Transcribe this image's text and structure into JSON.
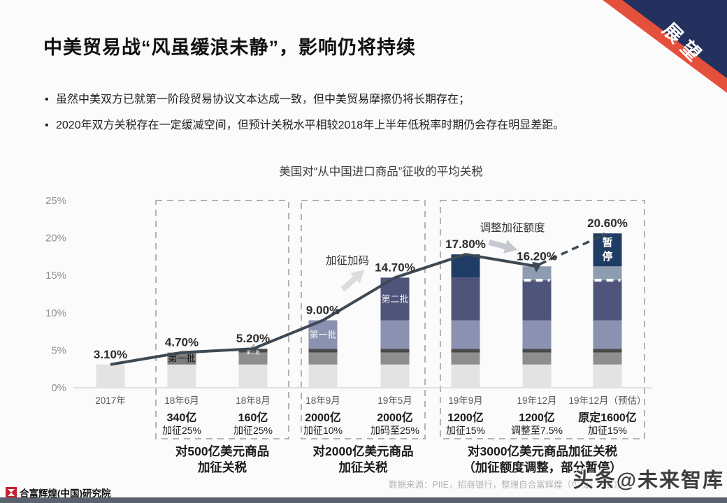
{
  "ribbon": {
    "label": "展望",
    "navy": "#24315f",
    "red": "#e4503c"
  },
  "header": {
    "title": "中美贸易战“风虽缓浪未静”，影响仍将持续",
    "bullets": [
      "虽然中美双方已就第一阶段贸易协议文本达成一致，但中美贸易摩擦仍将长期存在；",
      "2020年双方关税存在一定缓减空间，但预计关税水平相较2018年上半年低税率时期仍会存在明显差距。"
    ]
  },
  "chart_data": {
    "type": "bar",
    "subtype": "stacked-bar-with-line-overlay",
    "title": "美国对“从中国进口商品”征收的平均关税",
    "categories": [
      "2017年",
      "18年6月",
      "18年8月",
      "18年9月",
      "19年5月",
      "19年9月",
      "19年12月",
      "19年12月（预估）"
    ],
    "line_series": {
      "name": "平均关税",
      "values": [
        3.1,
        4.7,
        5.2,
        9.0,
        14.7,
        17.8,
        16.2,
        20.6
      ],
      "dashed_from_index": 6
    },
    "value_labels": [
      "3.10%",
      "4.70%",
      "5.20%",
      "9.00%",
      "14.70%",
      "17.80%",
      "16.20%",
      "20.60%"
    ],
    "ylim": [
      0,
      25
    ],
    "yticks": [
      "0%",
      "5%",
      "10%",
      "15%",
      "20%",
      "25%"
    ],
    "grid": "off",
    "line_color": "#3d4953",
    "bars": [
      {
        "segments": [
          {
            "from": 0,
            "to": 3.1,
            "color": "#e3e3e3"
          }
        ]
      },
      {
        "segments": [
          {
            "from": 0,
            "to": 3.1,
            "color": "#e3e3e3"
          },
          {
            "from": 3.1,
            "to": 4.7,
            "color": "#7d7d7d",
            "label": "第一批",
            "label_color": "#111111",
            "label_size": 13
          }
        ]
      },
      {
        "segments": [
          {
            "from": 0,
            "to": 3.1,
            "color": "#e3e3e3"
          },
          {
            "from": 3.1,
            "to": 4.7,
            "color": "#8e8e8e"
          },
          {
            "from": 4.7,
            "to": 5.2,
            "color": "#4a4a4a",
            "label": "第二批",
            "label_color": "#ffffff",
            "label_size": 6.5
          }
        ]
      },
      {
        "segments": [
          {
            "from": 0,
            "to": 3.1,
            "color": "#e3e3e3"
          },
          {
            "from": 3.1,
            "to": 4.7,
            "color": "#8e8e8e"
          },
          {
            "from": 4.7,
            "to": 5.2,
            "color": "#4a4a4a"
          },
          {
            "from": 5.2,
            "to": 9.0,
            "color": "#8b91b1",
            "label": "第一批",
            "label_color": "#f2f2f2",
            "label_size": 13
          }
        ]
      },
      {
        "segments": [
          {
            "from": 0,
            "to": 3.1,
            "color": "#e3e3e3"
          },
          {
            "from": 3.1,
            "to": 4.7,
            "color": "#8e8e8e"
          },
          {
            "from": 4.7,
            "to": 5.2,
            "color": "#4a4a4a"
          },
          {
            "from": 5.2,
            "to": 9.0,
            "color": "#8b91b1"
          },
          {
            "from": 9.0,
            "to": 14.7,
            "color": "#4f547a",
            "label": "第二批",
            "label_color": "#e9e9f0",
            "label_size": 13
          }
        ]
      },
      {
        "segments": [
          {
            "from": 0,
            "to": 3.1,
            "color": "#e3e3e3"
          },
          {
            "from": 3.1,
            "to": 4.7,
            "color": "#8e8e8e"
          },
          {
            "from": 4.7,
            "to": 5.2,
            "color": "#4a4a4a"
          },
          {
            "from": 5.2,
            "to": 9.0,
            "color": "#8b91b1"
          },
          {
            "from": 9.0,
            "to": 14.7,
            "color": "#4f547a"
          },
          {
            "from": 14.7,
            "to": 17.8,
            "color": "#1e3c64"
          }
        ]
      },
      {
        "break_at": 14.35,
        "segments": [
          {
            "from": 0,
            "to": 3.1,
            "color": "#e3e3e3"
          },
          {
            "from": 3.1,
            "to": 4.7,
            "color": "#8e8e8e"
          },
          {
            "from": 4.7,
            "to": 5.2,
            "color": "#4a4a4a"
          },
          {
            "from": 5.2,
            "to": 9.0,
            "color": "#8b91b1"
          },
          {
            "from": 9.0,
            "to": 14.35,
            "color": "#4f547a"
          },
          {
            "from": 14.35,
            "to": 16.2,
            "color": "#8d9cb1"
          }
        ]
      },
      {
        "break_at": 14.35,
        "segments": [
          {
            "from": 0,
            "to": 3.1,
            "color": "#e3e3e3"
          },
          {
            "from": 3.1,
            "to": 4.7,
            "color": "#8e8e8e"
          },
          {
            "from": 4.7,
            "to": 5.2,
            "color": "#4a4a4a"
          },
          {
            "from": 5.2,
            "to": 9.0,
            "color": "#8b91b1"
          },
          {
            "from": 9.0,
            "to": 14.35,
            "color": "#4f547a"
          },
          {
            "from": 14.35,
            "to": 16.2,
            "color": "#8d9cb1"
          },
          {
            "from": 16.2,
            "to": 20.6,
            "color": "#1e3c64",
            "label": "暂停",
            "label_color": "#ffffff",
            "label_size": 15,
            "vertical": true
          }
        ]
      }
    ],
    "bar_notes": [
      null,
      [
        "340亿",
        "加征25%"
      ],
      [
        "160亿",
        "加征25%"
      ],
      [
        "2000亿",
        "加征10%"
      ],
      [
        "2000亿",
        "加码至25%"
      ],
      [
        "1200亿",
        "加征15%"
      ],
      [
        "1200亿",
        "调整至7.5%"
      ],
      [
        "原定1600亿",
        "加征15%"
      ]
    ],
    "groups": [
      {
        "span": [
          1,
          2
        ],
        "lines": [
          "对500亿美元商品",
          "加征关税"
        ]
      },
      {
        "span": [
          3,
          4
        ],
        "lines": [
          "对2000亿美元商品",
          "加征关税"
        ]
      },
      {
        "span": [
          5,
          7
        ],
        "lines": [
          "对3000亿美元商品加征关税",
          "（加征额度调整，部分暂停）"
        ]
      }
    ],
    "annotations": [
      "加征加码",
      "调整加征额度"
    ],
    "legend_position": "none"
  },
  "footer": {
    "org": "合富辉煌(中国)研究院",
    "source": "数据来源：PIIE，招商银行，整理自合富辉煌（中国）研究院",
    "watermark": "头条@未来智库"
  }
}
